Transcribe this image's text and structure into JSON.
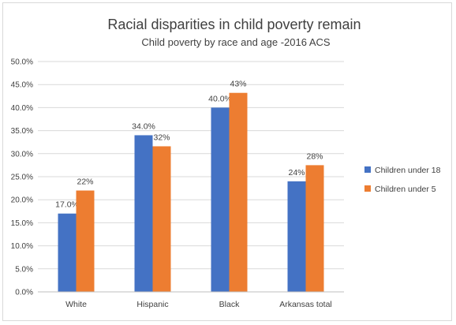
{
  "chart_data": {
    "type": "bar",
    "title": "Racial disparities in child poverty remain",
    "subtitle": "Child poverty by race and age -2016 ACS",
    "categories": [
      "White",
      "Hispanic",
      "Black",
      "Arkansas total"
    ],
    "series": [
      {
        "name": "Children under 18",
        "color": "#4472C4",
        "values": [
          17.0,
          34.0,
          40.0,
          24.0
        ],
        "labels": [
          "17.0%",
          "34.0%",
          "40.0%",
          "24%"
        ]
      },
      {
        "name": "Children under 5",
        "color": "#ED7D31",
        "values": [
          22.0,
          31.6,
          43.2,
          27.5
        ],
        "labels": [
          "22%",
          "32%",
          "43%",
          "28%"
        ]
      }
    ],
    "yticks": [
      "0.0%",
      "5.0%",
      "10.0%",
      "15.0%",
      "20.0%",
      "25.0%",
      "30.0%",
      "35.0%",
      "40.0%",
      "45.0%",
      "50.0%"
    ],
    "ylim": [
      0,
      50
    ],
    "grid": true,
    "legend_position": "right"
  }
}
